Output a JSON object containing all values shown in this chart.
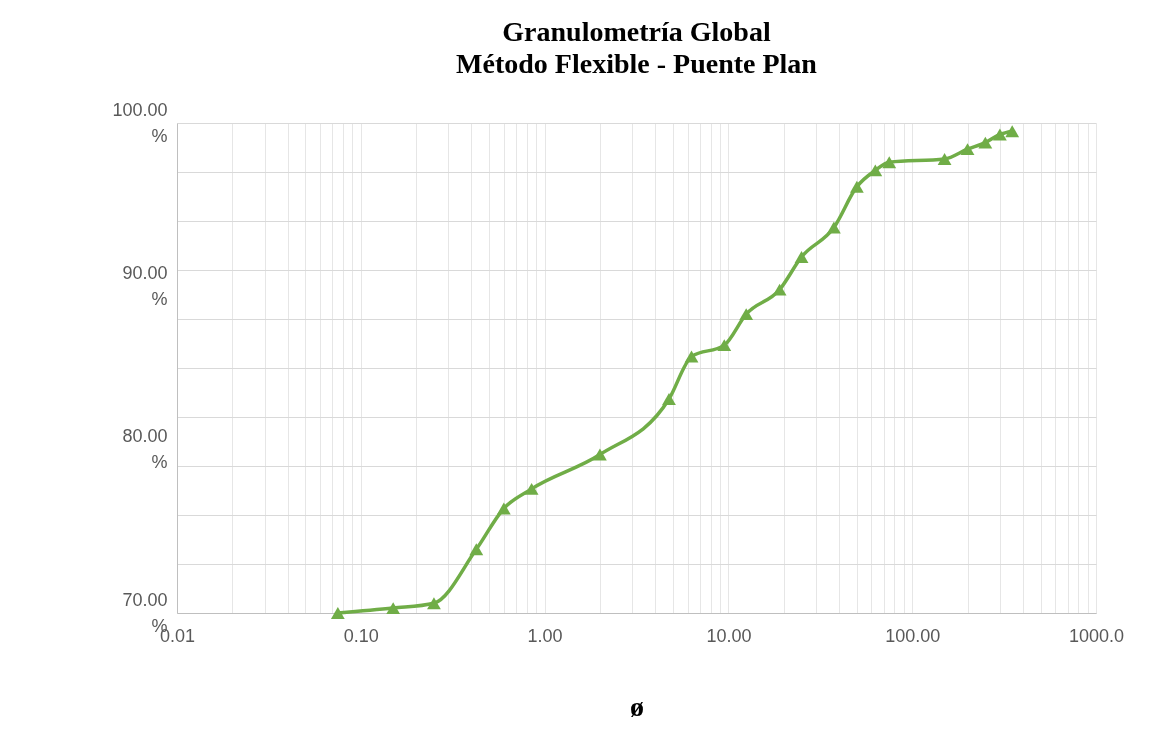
{
  "chart_data": {
    "type": "line",
    "title": "Granulometría Global",
    "subtitle": "Método Flexible - Puente Plan",
    "xlabel": "ø",
    "x": [
      0.075,
      0.15,
      0.25,
      0.425,
      0.6,
      0.85,
      2,
      4.75,
      6.3,
      9.5,
      12.5,
      19,
      25,
      37.5,
      50,
      63,
      75,
      150,
      200,
      250,
      300,
      350
    ],
    "series": [
      {
        "color": "#70ad47",
        "values": [
          70.0,
          70.3,
          70.6,
          73.9,
          76.4,
          77.6,
          79.7,
          83.1,
          85.7,
          86.4,
          88.3,
          89.8,
          91.8,
          93.6,
          96.1,
          97.1,
          97.6,
          97.8,
          98.4,
          98.8,
          99.3,
          99.5
        ]
      }
    ],
    "log": "x",
    "xlim": [
      0.01,
      1000
    ],
    "xticks": [
      0.01,
      {
        "value": 0.02,
        "label": null
      },
      {
        "value": 0.03,
        "label": null
      },
      {
        "value": 0.04,
        "label": null
      },
      {
        "value": 0.05,
        "label": null
      },
      {
        "value": 0.06,
        "label": null
      },
      {
        "value": 0.07,
        "label": null
      },
      {
        "value": 0.08,
        "label": null
      },
      {
        "value": 0.09,
        "label": null
      },
      {
        "value": 0.1,
        "label": "0.10"
      },
      {
        "value": 0.2,
        "label": null
      },
      {
        "value": 0.3,
        "label": null
      },
      {
        "value": 0.4,
        "label": null
      },
      {
        "value": 0.5,
        "label": null
      },
      {
        "value": 0.6,
        "label": null
      },
      {
        "value": 0.7,
        "label": null
      },
      {
        "value": 0.8,
        "label": null
      },
      {
        "value": 0.9,
        "label": null
      },
      {
        "value": 1,
        "label": "1.00"
      },
      {
        "value": 2,
        "label": null
      },
      {
        "value": 3,
        "label": null
      },
      {
        "value": 4,
        "label": null
      },
      {
        "value": 5,
        "label": null
      },
      {
        "value": 6,
        "label": null
      },
      {
        "value": 7,
        "label": null
      },
      {
        "value": 8,
        "label": null
      },
      {
        "value": 9,
        "label": null
      },
      {
        "value": 10,
        "label": "10.00"
      },
      {
        "value": 20,
        "label": null
      },
      {
        "value": 30,
        "label": null
      },
      {
        "value": 40,
        "label": null
      },
      {
        "value": 50,
        "label": null
      },
      {
        "value": 60,
        "label": null
      },
      {
        "value": 70,
        "label": null
      },
      {
        "value": 80,
        "label": null
      },
      {
        "value": 90,
        "label": null
      },
      {
        "value": 100,
        "label": "100.00"
      },
      {
        "value": 200,
        "label": null
      },
      {
        "value": 300,
        "label": null
      },
      {
        "value": 400,
        "label": null
      },
      {
        "value": 500,
        "label": null
      },
      {
        "value": 600,
        "label": null
      },
      {
        "value": 700,
        "label": null
      },
      {
        "value": 800,
        "label": null
      },
      {
        "value": 900,
        "label": null
      },
      {
        "value": 1000,
        "label": "1000.0"
      }
    ],
    "ylim": [
      70,
      100
    ],
    "yticks": [
      {
        "value": 70,
        "label": "70.00 %"
      },
      {
        "value": 73,
        "label": null
      },
      {
        "value": 76,
        "label": null
      },
      {
        "value": 79,
        "label": null
      },
      {
        "value": 80,
        "label": "80.00 %"
      },
      {
        "value": 82,
        "label": null
      },
      {
        "value": 85,
        "label": null
      },
      {
        "value": 88,
        "label": null
      },
      {
        "value": 90,
        "label": "90.00 %"
      },
      {
        "value": 91,
        "label": null
      },
      {
        "value": 94,
        "label": null
      },
      {
        "value": 97,
        "label": null
      },
      {
        "value": 100,
        "label": "100.00 %"
      }
    ],
    "grid": true,
    "marker": "triangle",
    "line_style": "solid",
    "legend": false
  }
}
